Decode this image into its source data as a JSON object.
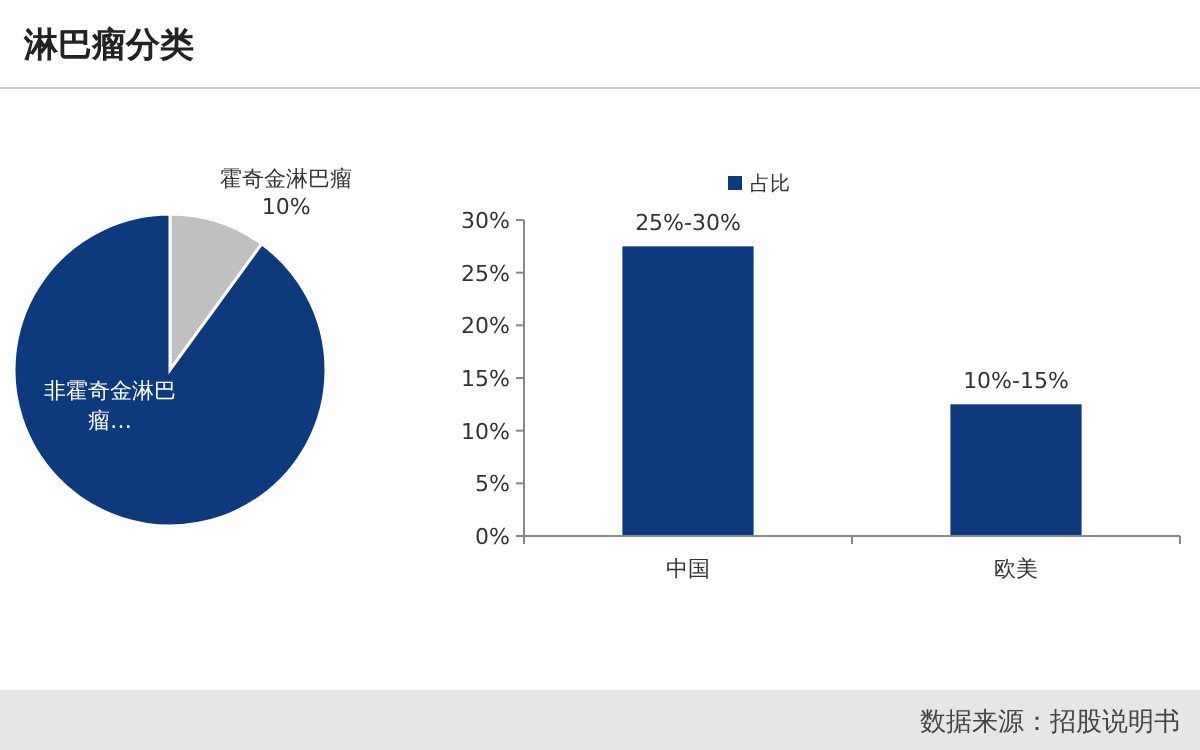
{
  "chart_data": [
    {
      "type": "pie",
      "title": "淋巴瘤分类",
      "categories": [
        "霍奇金淋巴瘤",
        "非霍奇金淋巴瘤…"
      ],
      "values": [
        10,
        90
      ],
      "colors": [
        "#c0c0c0",
        "#0d3a7d"
      ],
      "value_labels": [
        "10%",
        null
      ]
    },
    {
      "type": "bar",
      "categories": [
        "中国",
        "欧美"
      ],
      "series": [
        {
          "name": "占比",
          "color": "#0d3a7d",
          "values": [
            27.5,
            12.5
          ]
        }
      ],
      "ylim": [
        0,
        30
      ],
      "yticks": [
        {
          "value": 0,
          "label": "0%"
        },
        {
          "value": 5,
          "label": "5%"
        },
        {
          "value": 10,
          "label": "10%"
        },
        {
          "value": 15,
          "label": "15%"
        },
        {
          "value": 20,
          "label": "20%"
        },
        {
          "value": 25,
          "label": "25%"
        },
        {
          "value": 30,
          "label": "30%"
        }
      ],
      "legend": "top",
      "annotations": [
        {
          "text": "25%-30%",
          "x": "中国",
          "y": 27.5
        },
        {
          "text": "10%-15%",
          "x": "欧美",
          "y": 12.5
        },
        "数据来源：招股说明书"
      ]
    }
  ]
}
